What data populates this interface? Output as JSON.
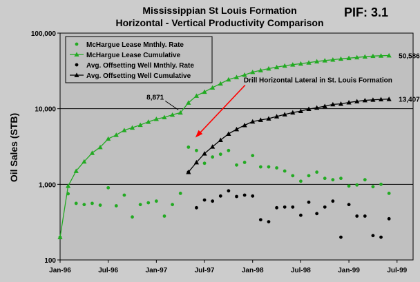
{
  "chart_data": {
    "type": "line",
    "title": "Mississippian St Louis Formation",
    "subtitle": "Horizontal - Vertical Productivity Comparison",
    "badge": "PIF: 3.1",
    "ylabel": "Oil Sales (STB)",
    "xlabel": "",
    "y_scale": "log",
    "ylim": [
      100,
      100000
    ],
    "xlim": [
      "1996-01",
      "1999-09"
    ],
    "y_ticks": [
      "100",
      "1,000",
      "10,000",
      "100,000"
    ],
    "x_ticks": [
      "Jan-96",
      "Jul-96",
      "Jan-97",
      "Jul-97",
      "Jan-98",
      "Jul-98",
      "Jan-99",
      "Jul-99"
    ],
    "grid": "horizontal",
    "legend_position": "top-left",
    "colors": {
      "plot_bg": "#c0c0c0",
      "grid": "#000000",
      "green": "#22aa22",
      "black": "#000000",
      "arrow": "#ff0000"
    },
    "series": [
      {
        "name": "McHargue Lease Mnthly. Rate",
        "style": "markers",
        "marker": "circle",
        "color": "#22aa22",
        "points": [
          [
            "1996-01",
            200
          ],
          [
            "1996-02",
            750
          ],
          [
            "1996-03",
            560
          ],
          [
            "1996-04",
            540
          ],
          [
            "1996-05",
            560
          ],
          [
            "1996-06",
            530
          ],
          [
            "1996-07",
            900
          ],
          [
            "1996-08",
            520
          ],
          [
            "1996-09",
            720
          ],
          [
            "1996-10",
            370
          ],
          [
            "1996-11",
            540
          ],
          [
            "1996-12",
            570
          ],
          [
            "1997-01",
            600
          ],
          [
            "1997-02",
            380
          ],
          [
            "1997-03",
            540
          ],
          [
            "1997-04",
            760
          ],
          [
            "1997-05",
            3100
          ],
          [
            "1997-06",
            2800
          ],
          [
            "1997-07",
            1900
          ],
          [
            "1997-08",
            2300
          ],
          [
            "1997-09",
            2500
          ],
          [
            "1997-10",
            2800
          ],
          [
            "1997-11",
            1800
          ],
          [
            "1997-12",
            1950
          ],
          [
            "1998-01",
            2400
          ],
          [
            "1998-02",
            1700
          ],
          [
            "1998-03",
            1700
          ],
          [
            "1998-04",
            1650
          ],
          [
            "1998-05",
            1500
          ],
          [
            "1998-06",
            1300
          ],
          [
            "1998-07",
            1100
          ],
          [
            "1998-08",
            1300
          ],
          [
            "1998-09",
            1450
          ],
          [
            "1998-10",
            1200
          ],
          [
            "1998-11",
            1150
          ],
          [
            "1998-12",
            1200
          ],
          [
            "1999-01",
            950
          ],
          [
            "1999-02",
            980
          ],
          [
            "1999-03",
            1150
          ],
          [
            "1999-04",
            930
          ],
          [
            "1999-05",
            1000
          ],
          [
            "1999-06",
            760
          ]
        ]
      },
      {
        "name": "McHargue Lease Cumulative",
        "style": "line-markers",
        "marker": "triangle",
        "color": "#22aa22",
        "points": [
          [
            "1996-01",
            200
          ],
          [
            "1996-02",
            950
          ],
          [
            "1996-03",
            1500
          ],
          [
            "1996-04",
            2000
          ],
          [
            "1996-05",
            2600
          ],
          [
            "1996-06",
            3100
          ],
          [
            "1996-07",
            4000
          ],
          [
            "1996-08",
            4500
          ],
          [
            "1996-09",
            5200
          ],
          [
            "1996-10",
            5600
          ],
          [
            "1996-11",
            6100
          ],
          [
            "1996-12",
            6700
          ],
          [
            "1997-01",
            7300
          ],
          [
            "1997-02",
            7700
          ],
          [
            "1997-03",
            8300
          ],
          [
            "1997-04",
            8871
          ],
          [
            "1997-05",
            12000
          ],
          [
            "1997-06",
            14800
          ],
          [
            "1997-07",
            16700
          ],
          [
            "1997-08",
            19000
          ],
          [
            "1997-09",
            21500
          ],
          [
            "1997-10",
            24300
          ],
          [
            "1997-11",
            26100
          ],
          [
            "1997-12",
            28000
          ],
          [
            "1998-01",
            30500
          ],
          [
            "1998-02",
            32200
          ],
          [
            "1998-03",
            33900
          ],
          [
            "1998-04",
            35500
          ],
          [
            "1998-05",
            37000
          ],
          [
            "1998-06",
            38300
          ],
          [
            "1998-07",
            39400
          ],
          [
            "1998-08",
            40700
          ],
          [
            "1998-09",
            42200
          ],
          [
            "1998-10",
            43400
          ],
          [
            "1998-11",
            44500
          ],
          [
            "1998-12",
            45700
          ],
          [
            "1999-01",
            46700
          ],
          [
            "1999-02",
            47700
          ],
          [
            "1999-03",
            48800
          ],
          [
            "1999-04",
            49700
          ],
          [
            "1999-05",
            50200
          ],
          [
            "1999-06",
            50586
          ]
        ]
      },
      {
        "name": "Avg. Offsetting Well Mnthly. Rate",
        "style": "markers",
        "marker": "circle",
        "color": "#000000",
        "points": [
          [
            "1997-05",
            1450
          ],
          [
            "1997-06",
            490
          ],
          [
            "1997-07",
            620
          ],
          [
            "1997-08",
            600
          ],
          [
            "1997-09",
            700
          ],
          [
            "1997-10",
            820
          ],
          [
            "1997-11",
            690
          ],
          [
            "1997-12",
            720
          ],
          [
            "1998-01",
            700
          ],
          [
            "1998-02",
            340
          ],
          [
            "1998-03",
            320
          ],
          [
            "1998-04",
            490
          ],
          [
            "1998-05",
            500
          ],
          [
            "1998-06",
            500
          ],
          [
            "1998-07",
            390
          ],
          [
            "1998-08",
            580
          ],
          [
            "1998-09",
            410
          ],
          [
            "1998-10",
            500
          ],
          [
            "1998-11",
            600
          ],
          [
            "1998-12",
            200
          ],
          [
            "1999-01",
            540
          ],
          [
            "1999-02",
            380
          ],
          [
            "1999-03",
            380
          ],
          [
            "1999-04",
            210
          ],
          [
            "1999-05",
            200
          ],
          [
            "1999-06",
            350
          ]
        ]
      },
      {
        "name": "Avg. Offsetting Well Cumulative",
        "style": "line-markers",
        "marker": "triangle",
        "color": "#000000",
        "points": [
          [
            "1997-05",
            1450
          ],
          [
            "1997-06",
            1950
          ],
          [
            "1997-07",
            2550
          ],
          [
            "1997-08",
            3150
          ],
          [
            "1997-09",
            3850
          ],
          [
            "1997-10",
            4650
          ],
          [
            "1997-11",
            5350
          ],
          [
            "1997-12",
            6050
          ],
          [
            "1998-01",
            6750
          ],
          [
            "1998-02",
            7100
          ],
          [
            "1998-03",
            7400
          ],
          [
            "1998-04",
            7900
          ],
          [
            "1998-05",
            8400
          ],
          [
            "1998-06",
            8900
          ],
          [
            "1998-07",
            9300
          ],
          [
            "1998-08",
            9900
          ],
          [
            "1998-09",
            10300
          ],
          [
            "1998-10",
            10800
          ],
          [
            "1998-11",
            11400
          ],
          [
            "1998-12",
            11600
          ],
          [
            "1999-01",
            12100
          ],
          [
            "1999-02",
            12500
          ],
          [
            "1999-03",
            12900
          ],
          [
            "1999-04",
            13100
          ],
          [
            "1999-05",
            13300
          ],
          [
            "1999-06",
            13407
          ]
        ]
      }
    ],
    "annotations": [
      {
        "text": "50,586",
        "x": "1999-06",
        "y": 50586,
        "role": "end-label"
      },
      {
        "text": "13,407",
        "x": "1999-06",
        "y": 13407,
        "role": "end-label"
      },
      {
        "text": "8,871",
        "x": "1997-04",
        "y": 8871,
        "role": "callout"
      },
      {
        "text": "Drill Horizontal Lateral in St. Louis Formation",
        "x": "1997-05",
        "y": 3100,
        "role": "arrow-callout"
      }
    ]
  }
}
